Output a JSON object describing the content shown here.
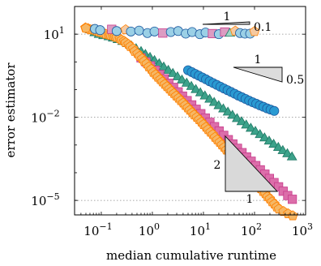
{
  "chart_data": {
    "type": "scatter",
    "title": "",
    "xlabel": "median cumulative runtime",
    "ylabel": "error estimator",
    "xscale": "log",
    "yscale": "log",
    "xlim": [
      0.03,
      1000
    ],
    "ylim": [
      3e-06,
      100
    ],
    "grid": "dotted at major y ticks",
    "legend": "none",
    "x_ticks": [
      {
        "value": 0.1,
        "base": "10",
        "exp": "−1"
      },
      {
        "value": 1,
        "base": "10",
        "exp": "0"
      },
      {
        "value": 10,
        "base": "10",
        "exp": "1"
      },
      {
        "value": 100,
        "base": "10",
        "exp": "2"
      },
      {
        "value": 1000,
        "base": "10",
        "exp": "3"
      }
    ],
    "y_ticks": [
      {
        "value": 1e-05,
        "base": "10",
        "exp": "−5"
      },
      {
        "value": 0.01,
        "base": "10",
        "exp": "−2"
      },
      {
        "value": 10,
        "base": "10",
        "exp": "1"
      }
    ],
    "series": [
      {
        "marker": "pentagon",
        "color": "#ff7f00",
        "fill": "#f5b765",
        "points": [
          [
            0.049,
            17.0
          ],
          [
            0.061,
            14.5
          ],
          [
            0.074,
            14.0
          ],
          [
            0.091,
            12.0
          ],
          [
            0.11,
            11.0
          ],
          [
            0.14,
            9.6
          ],
          [
            0.17,
            8.8
          ],
          [
            0.2,
            7.7
          ],
          [
            0.25,
            6.2
          ],
          [
            0.3,
            5.0
          ],
          [
            0.37,
            3.6
          ],
          [
            0.45,
            2.4
          ],
          [
            0.56,
            1.6
          ],
          [
            0.69,
            1.05
          ],
          [
            0.85,
            0.66
          ],
          [
            1.04,
            0.42
          ],
          [
            1.28,
            0.28
          ],
          [
            1.57,
            0.19
          ],
          [
            1.93,
            0.128
          ],
          [
            2.37,
            0.087
          ],
          [
            2.92,
            0.059
          ],
          [
            3.59,
            0.04
          ],
          [
            4.4,
            0.027
          ],
          [
            5.4,
            0.0181
          ],
          [
            6.6,
            0.0122
          ],
          [
            8.2,
            0.0082
          ],
          [
            10,
            0.0055
          ],
          [
            12.3,
            0.0036
          ],
          [
            15.2,
            0.0024
          ],
          [
            18.6,
            0.00155
          ],
          [
            22.9,
            0.00101
          ],
          [
            28,
            0.00066
          ],
          [
            34.5,
            0.00043
          ],
          [
            42.4,
            0.00028
          ],
          [
            52,
            0.000182
          ],
          [
            64,
            0.000119
          ],
          [
            78.6,
            7.8e-05
          ],
          [
            96.6,
            5.1e-05
          ],
          [
            119,
            3.3e-05
          ],
          [
            146,
            2.1e-05
          ],
          [
            179,
            1.37e-05
          ],
          [
            220,
            8.9e-06
          ],
          [
            271,
            5.8e-06
          ]
        ],
        "text_points": [
          [
            0.055,
            16.0
          ],
          [
            0.067,
            14.5
          ],
          [
            0.082,
            13.0
          ],
          [
            0.1,
            11.5
          ],
          [
            0.123,
            10.0
          ],
          [
            0.151,
            9.2
          ],
          [
            0.185,
            8.2
          ],
          [
            0.23,
            6.9
          ],
          [
            0.28,
            5.6
          ],
          [
            0.34,
            4.3
          ],
          [
            0.42,
            3.0
          ],
          [
            0.51,
            2.0
          ],
          [
            0.63,
            1.3
          ],
          [
            0.77,
            0.85
          ],
          [
            0.95,
            0.54
          ],
          [
            1.16,
            0.345
          ],
          [
            1.43,
            0.23
          ],
          [
            1.75,
            0.155
          ],
          [
            2.15,
            0.105
          ],
          [
            2.64,
            0.072
          ],
          [
            3.25,
            0.049
          ],
          [
            4.0,
            0.033
          ],
          [
            4.9,
            0.022
          ],
          [
            6.0,
            0.0148
          ],
          [
            7.4,
            0.01
          ],
          [
            9.1,
            0.0067
          ],
          [
            11.2,
            0.0044
          ],
          [
            13.7,
            0.0029
          ],
          [
            16.8,
            0.0019
          ],
          [
            20.7,
            0.00125
          ],
          [
            25.4,
            0.00082
          ],
          [
            31.2,
            0.00054
          ],
          [
            38.3,
            0.00035
          ],
          [
            47,
            0.00023
          ],
          [
            57.8,
            0.00015
          ],
          [
            71,
            9.7e-05
          ],
          [
            87.3,
            6.3e-05
          ],
          [
            107,
            4.1e-05
          ],
          [
            132,
            2.7e-05
          ],
          [
            162,
            1.75e-05
          ],
          [
            199,
            1.14e-05
          ],
          [
            244,
            7.4e-06
          ],
          [
            300,
            4.9e-06
          ],
          [
            370,
            4e-06
          ],
          [
            455,
            3.3e-06
          ],
          [
            560,
            2.8e-06
          ]
        ]
      },
      {
        "marker": "square",
        "color": "#c83c8c",
        "fill": "#dc6eaa",
        "points": [
          [
            0.6,
            1.4
          ],
          [
            0.75,
            1.0
          ],
          [
            0.92,
            0.72
          ],
          [
            1.13,
            0.5
          ],
          [
            1.39,
            0.35
          ],
          [
            1.7,
            0.245
          ],
          [
            2.1,
            0.17
          ],
          [
            2.6,
            0.12
          ],
          [
            3.2,
            0.083
          ],
          [
            3.9,
            0.058
          ],
          [
            4.8,
            0.04
          ],
          [
            5.9,
            0.028
          ],
          [
            7.2,
            0.0195
          ],
          [
            8.9,
            0.0135
          ],
          [
            10.9,
            0.0094
          ],
          [
            13.4,
            0.0066
          ],
          [
            16.5,
            0.0046
          ],
          [
            20.3,
            0.0032
          ],
          [
            25,
            0.00223
          ],
          [
            30.7,
            0.00156
          ],
          [
            37.7,
            0.00109
          ],
          [
            46.4,
            0.00076
          ],
          [
            57,
            0.00053
          ],
          [
            70,
            0.00037
          ],
          [
            86,
            0.00026
          ],
          [
            106,
            0.000181
          ],
          [
            130,
            0.000127
          ],
          [
            160,
            8.9e-05
          ],
          [
            196,
            6.2e-05
          ],
          [
            241,
            4.4e-05
          ],
          [
            296,
            3.1e-05
          ],
          [
            364,
            2.15e-05
          ],
          [
            447,
            1.5e-05
          ],
          [
            550,
            1.1e-05
          ]
        ]
      },
      {
        "marker": "triangle",
        "color": "#1e7864",
        "fill": "#3ca28a",
        "points": [
          [
            0.06,
            14.0
          ],
          [
            0.074,
            11.0
          ],
          [
            0.09,
            9.5
          ],
          [
            0.11,
            8.6
          ],
          [
            0.14,
            7.8
          ],
          [
            0.17,
            7.0
          ],
          [
            0.21,
            6.2
          ],
          [
            0.26,
            5.3
          ],
          [
            0.32,
            4.4
          ],
          [
            0.39,
            3.6
          ],
          [
            0.48,
            2.9
          ],
          [
            0.6,
            2.3
          ],
          [
            0.73,
            1.8
          ],
          [
            0.9,
            1.4
          ],
          [
            1.1,
            1.08
          ],
          [
            1.36,
            0.83
          ],
          [
            1.67,
            0.63
          ],
          [
            2.05,
            0.48
          ],
          [
            2.52,
            0.37
          ],
          [
            3.1,
            0.28
          ],
          [
            3.8,
            0.215
          ],
          [
            4.7,
            0.165
          ],
          [
            5.8,
            0.126
          ],
          [
            7.1,
            0.097
          ],
          [
            8.7,
            0.074
          ],
          [
            10.7,
            0.057
          ],
          [
            13.2,
            0.0435
          ],
          [
            16.2,
            0.0333
          ],
          [
            19.9,
            0.0255
          ],
          [
            24.5,
            0.0195
          ],
          [
            30.1,
            0.0149
          ],
          [
            37,
            0.0114
          ],
          [
            45.5,
            0.0087
          ],
          [
            56,
            0.0067
          ],
          [
            68.8,
            0.0051
          ],
          [
            84.6,
            0.0039
          ],
          [
            104,
            0.003
          ],
          [
            128,
            0.0023
          ],
          [
            157,
            0.00175
          ],
          [
            193,
            0.00134
          ],
          [
            237,
            0.00103
          ],
          [
            292,
            0.00079
          ],
          [
            358,
            0.00061
          ],
          [
            440,
            0.00047
          ],
          [
            541,
            0.00036
          ]
        ]
      },
      {
        "marker": "circle",
        "color": "#1e5aa0",
        "fill": "#2a9ad2",
        "points": [
          [
            5.0,
            0.5
          ],
          [
            5.9,
            0.43
          ],
          [
            6.9,
            0.37
          ],
          [
            8.1,
            0.32
          ],
          [
            9.5,
            0.275
          ],
          [
            11.2,
            0.235
          ],
          [
            13.2,
            0.2
          ],
          [
            15.5,
            0.172
          ],
          [
            18.2,
            0.148
          ],
          [
            21.4,
            0.128
          ],
          [
            25.2,
            0.11
          ],
          [
            29.6,
            0.095
          ],
          [
            34.8,
            0.082
          ],
          [
            40.9,
            0.071
          ],
          [
            48.1,
            0.061
          ],
          [
            56.6,
            0.053
          ],
          [
            66.5,
            0.046
          ],
          [
            78.2,
            0.04
          ],
          [
            92,
            0.035
          ],
          [
            108,
            0.031
          ],
          [
            127,
            0.027
          ],
          [
            149,
            0.024
          ],
          [
            176,
            0.021
          ],
          [
            206,
            0.019
          ],
          [
            243,
            0.017
          ]
        ]
      },
      {
        "marker": "mixed-top",
        "points": [
          {
            "x": 0.05,
            "y": 16.5,
            "shape": "pentagon",
            "fill": "#f5b765",
            "color": "#ff7f00"
          },
          {
            "x": 0.075,
            "y": 15.5,
            "shape": "circle",
            "fill": "#9bd0e6",
            "color": "#1e5aa0"
          },
          {
            "x": 0.095,
            "y": 14.0,
            "shape": "circle",
            "fill": "#9bd0e6",
            "color": "#1e5aa0"
          },
          {
            "x": 0.16,
            "y": 15.0,
            "shape": "square",
            "fill": "#dc9cc2",
            "color": "#c83c8c"
          },
          {
            "x": 0.2,
            "y": 13.0,
            "shape": "circle",
            "fill": "#9bd0e6",
            "color": "#1e5aa0"
          },
          {
            "x": 0.3,
            "y": 14.5,
            "shape": "pentagon",
            "fill": "#f5c9a0",
            "color": "#ff7f00"
          },
          {
            "x": 0.38,
            "y": 12.5,
            "shape": "circle",
            "fill": "#9bd0e6",
            "color": "#1e5aa0"
          },
          {
            "x": 0.55,
            "y": 13.5,
            "shape": "circle",
            "fill": "#9bd0e6",
            "color": "#1e5aa0"
          },
          {
            "x": 0.8,
            "y": 11.0,
            "shape": "circle",
            "fill": "#9bd0e6",
            "color": "#1e5aa0"
          },
          {
            "x": 1.1,
            "y": 12.5,
            "shape": "circle",
            "fill": "#9bd0e6",
            "color": "#1e5aa0"
          },
          {
            "x": 1.6,
            "y": 11.0,
            "shape": "square",
            "fill": "#dc9cc2",
            "color": "#c83c8c"
          },
          {
            "x": 2.3,
            "y": 12.0,
            "shape": "circle",
            "fill": "#9bd0e6",
            "color": "#1e5aa0"
          },
          {
            "x": 3.2,
            "y": 13.0,
            "shape": "circle",
            "fill": "#9bd0e6",
            "color": "#1e5aa0"
          },
          {
            "x": 4.5,
            "y": 10.5,
            "shape": "circle",
            "fill": "#9bd0e6",
            "color": "#1e5aa0"
          },
          {
            "x": 6.0,
            "y": 12.0,
            "shape": "circle",
            "fill": "#9bd0e6",
            "color": "#1e5aa0"
          },
          {
            "x": 8.5,
            "y": 10.0,
            "shape": "circle",
            "fill": "#9bd0e6",
            "color": "#1e5aa0"
          },
          {
            "x": 11,
            "y": 11.5,
            "shape": "circle",
            "fill": "#9bd0e6",
            "color": "#1e5aa0"
          },
          {
            "x": 15,
            "y": 10.5,
            "shape": "square",
            "fill": "#dc9cc2",
            "color": "#c83c8c"
          },
          {
            "x": 20,
            "y": 10.0,
            "shape": "circle",
            "fill": "#9bd0e6",
            "color": "#1e5aa0"
          },
          {
            "x": 26,
            "y": 12.0,
            "shape": "square",
            "fill": "#dc9cc2",
            "color": "#c83c8c"
          },
          {
            "x": 33,
            "y": 10.5,
            "shape": "triangle",
            "fill": "#9fd6c6",
            "color": "#1e7864"
          },
          {
            "x": 42,
            "y": 13.0,
            "shape": "pentagon",
            "fill": "#f5c9a0",
            "color": "#ff7f00"
          },
          {
            "x": 52,
            "y": 11.0,
            "shape": "circle",
            "fill": "#9bd0e6",
            "color": "#1e5aa0"
          },
          {
            "x": 65,
            "y": 10.5,
            "shape": "circle",
            "fill": "#9bd0e6",
            "color": "#1e5aa0"
          },
          {
            "x": 82,
            "y": 10.5,
            "shape": "circle",
            "fill": "#9bd0e6",
            "color": "#1e5aa0"
          },
          {
            "x": 100,
            "y": 12.5,
            "shape": "pentagon",
            "fill": "#f5c9a0",
            "color": "#ff7f00"
          }
        ]
      }
    ],
    "slope_triangles": [
      {
        "label_top": "1",
        "label_side": "0.1"
      },
      {
        "label_top": "1",
        "label_side": "0.5"
      },
      {
        "label_side": "2",
        "label_bottom": "1"
      }
    ]
  }
}
